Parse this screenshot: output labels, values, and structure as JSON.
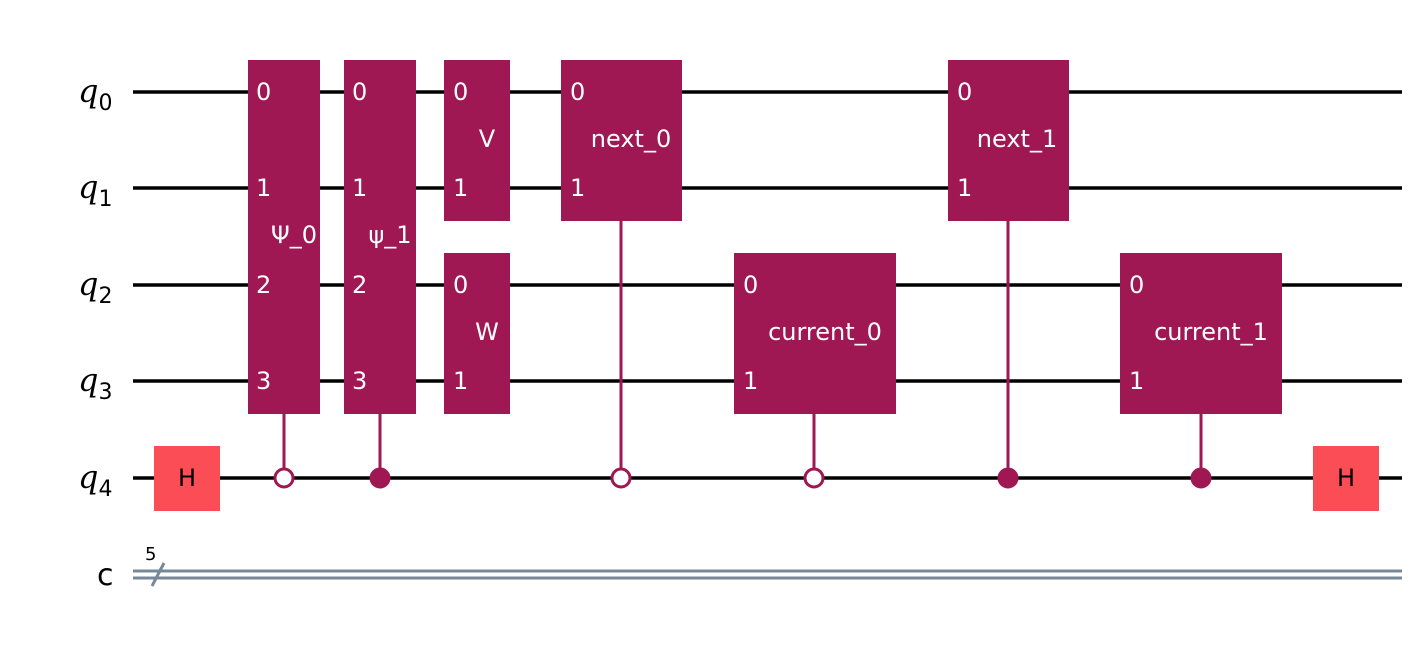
{
  "circuit": {
    "qubits": [
      {
        "name": "q",
        "index": "0"
      },
      {
        "name": "q",
        "index": "1"
      },
      {
        "name": "q",
        "index": "2"
      },
      {
        "name": "q",
        "index": "3"
      },
      {
        "name": "q",
        "index": "4"
      }
    ],
    "classical": {
      "name": "c",
      "bits": "5"
    },
    "gates": {
      "h_start": "H",
      "psi_0": "Ψ_0",
      "psi_1": "ψ_1",
      "v": "V",
      "w": "W",
      "next_0": "next_0",
      "current_0": "current_0",
      "next_1": "next_1",
      "current_1": "current_1",
      "h_end": "H"
    },
    "pin_labels": [
      "0",
      "1",
      "2",
      "3"
    ],
    "colors": {
      "gate": "#9f1853",
      "hadamard": "#fa4d56",
      "classical_wire": "#778899",
      "quantum_wire": "#000000"
    },
    "controls": [
      {
        "gate": "Ψ_0",
        "state": "0"
      },
      {
        "gate": "ψ_1",
        "state": "1"
      },
      {
        "gate": "next_0",
        "state": "0"
      },
      {
        "gate": "current_0",
        "state": "0"
      },
      {
        "gate": "next_1",
        "state": "1"
      },
      {
        "gate": "current_1",
        "state": "1"
      }
    ]
  }
}
